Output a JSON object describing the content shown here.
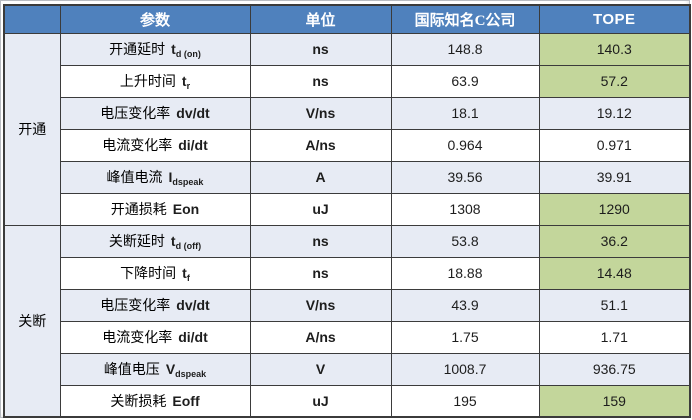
{
  "colors": {
    "header_bg": "#4F81BD",
    "header_text": "#FFFFFF",
    "highlight_green": "#C3D69B",
    "band_blue": "#E7EBF4",
    "row_white": "#FFFFFF",
    "border": "#3B3B3B"
  },
  "table": {
    "headers": {
      "group": "",
      "param": "参数",
      "unit": "单位",
      "company": "国际知名C公司",
      "tope": "TOPE"
    },
    "groups": [
      {
        "label": "开通",
        "rows": 6
      },
      {
        "label": "关断",
        "rows": 6
      }
    ],
    "rows": [
      {
        "param": "开通延时",
        "symbol": "t",
        "symbol_sub": "d (on)",
        "unit": "ns",
        "company": "148.8",
        "tope": "140.3",
        "tope_better": true
      },
      {
        "param": "上升时间",
        "symbol": "t",
        "symbol_sub": "r",
        "unit": "ns",
        "company": "63.9",
        "tope": "57.2",
        "tope_better": true
      },
      {
        "param": "电压变化率",
        "symbol": "dv/dt",
        "symbol_sub": "",
        "unit": "V/ns",
        "company": "18.1",
        "tope": "19.12",
        "tope_better": false
      },
      {
        "param": "电流变化率",
        "symbol": "di/dt",
        "symbol_sub": "",
        "unit": "A/ns",
        "company": "0.964",
        "tope": "0.971",
        "tope_better": false
      },
      {
        "param": "峰值电流",
        "symbol": "I",
        "symbol_sub": "dspeak",
        "unit": "A",
        "company": "39.56",
        "tope": "39.91",
        "tope_better": false
      },
      {
        "param": "开通损耗",
        "symbol": "Eon",
        "symbol_sub": "",
        "unit": "uJ",
        "company": "1308",
        "tope": "1290",
        "tope_better": true
      },
      {
        "param": "关断延时",
        "symbol": "t",
        "symbol_sub": "d (off)",
        "unit": "ns",
        "company": "53.8",
        "tope": "36.2",
        "tope_better": true
      },
      {
        "param": "下降时间",
        "symbol": "t",
        "symbol_sub": "f",
        "unit": "ns",
        "company": "18.88",
        "tope": "14.48",
        "tope_better": true
      },
      {
        "param": "电压变化率",
        "symbol": "dv/dt",
        "symbol_sub": "",
        "unit": "V/ns",
        "company": "43.9",
        "tope": "51.1",
        "tope_better": false
      },
      {
        "param": "电流变化率",
        "symbol": "di/dt",
        "symbol_sub": "",
        "unit": "A/ns",
        "company": "1.75",
        "tope": "1.71",
        "tope_better": false
      },
      {
        "param": "峰值电压",
        "symbol": "V",
        "symbol_sub": "dspeak",
        "unit": "V",
        "company": "1008.7",
        "tope": "936.75",
        "tope_better": false
      },
      {
        "param": "关断损耗",
        "symbol": "Eoff",
        "symbol_sub": "",
        "unit": "uJ",
        "company": "195",
        "tope": "159",
        "tope_better": true
      }
    ]
  }
}
